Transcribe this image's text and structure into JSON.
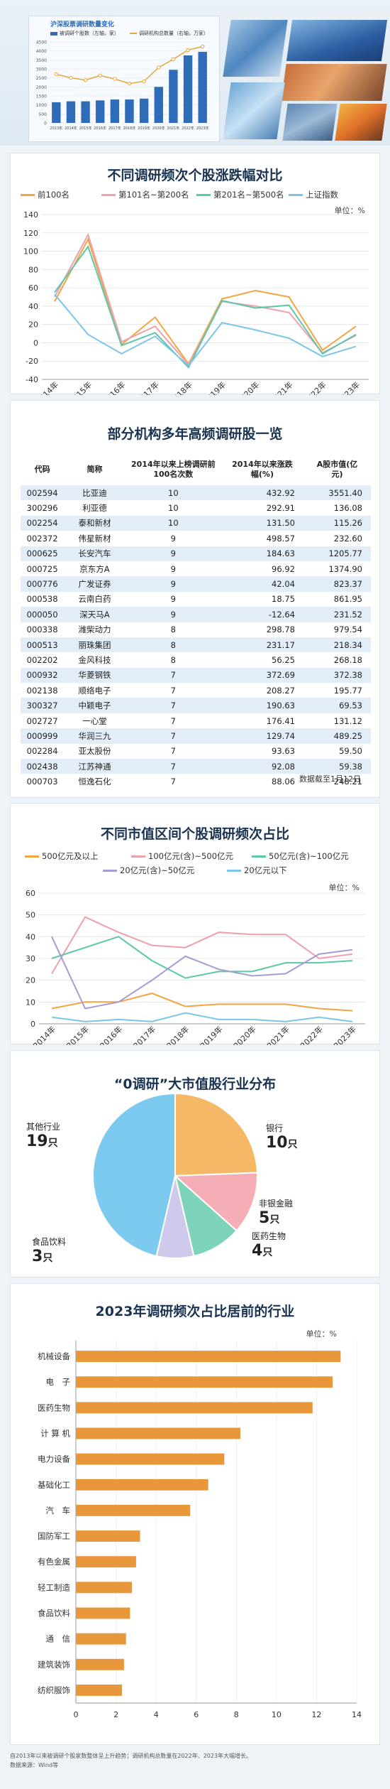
{
  "header": {
    "chart_title": "沪深股票调研数量变化",
    "legend_bar": "被调研个股数（左轴，家）",
    "legend_line": "调研机构总数量（右轴，万家）",
    "left_ticks": [
      "4500",
      "4000",
      "3500",
      "3000",
      "2500",
      "2000",
      "1500",
      "1000",
      "500",
      "0"
    ],
    "years": [
      "2013年",
      "2014年",
      "2015年",
      "2016年",
      "2017年",
      "2018年",
      "2019年",
      "2020年",
      "2021年",
      "2022年",
      "2023年"
    ],
    "photos": [
      "实验室显微照片",
      "光伏与输电塔照片",
      "工业车间照片",
      "医疗实验照片",
      "轨道交通照片",
      "炼钢炉照片"
    ]
  },
  "panel1": {
    "title": "不同调研频次个股涨跌幅对比",
    "unit": "单位：%"
  },
  "panel2": {
    "title": "部分机构多年高频调研股一览",
    "headers": [
      "代码",
      "简称",
      "2014年以来上榜调研前100名次数",
      "2014年以来涨跌幅(%)",
      "A股市值(亿元)"
    ],
    "rows": [
      [
        "002594",
        "比亚迪",
        "10",
        "432.92",
        "3551.40"
      ],
      [
        "300296",
        "利亚德",
        "10",
        "292.91",
        "136.08"
      ],
      [
        "002254",
        "泰和新材",
        "10",
        "131.50",
        "115.26"
      ],
      [
        "002372",
        "伟星新材",
        "9",
        "498.57",
        "232.60"
      ],
      [
        "000625",
        "长安汽车",
        "9",
        "184.63",
        "1205.77"
      ],
      [
        "000725",
        "京东方A",
        "9",
        "96.92",
        "1374.90"
      ],
      [
        "000776",
        "广发证券",
        "9",
        "42.04",
        "823.37"
      ],
      [
        "000538",
        "云南白药",
        "9",
        "18.75",
        "861.95"
      ],
      [
        "000050",
        "深天马A",
        "9",
        "-12.64",
        "231.52"
      ],
      [
        "000338",
        "潍柴动力",
        "8",
        "298.78",
        "979.54"
      ],
      [
        "000513",
        "丽珠集团",
        "8",
        "231.17",
        "218.34"
      ],
      [
        "002202",
        "金风科技",
        "8",
        "56.25",
        "268.18"
      ],
      [
        "000932",
        "华菱钢铁",
        "7",
        "372.69",
        "372.38"
      ],
      [
        "002138",
        "顺络电子",
        "7",
        "208.27",
        "195.77"
      ],
      [
        "300327",
        "中颖电子",
        "7",
        "190.63",
        "69.53"
      ],
      [
        "002727",
        "一心堂",
        "7",
        "176.41",
        "131.12"
      ],
      [
        "000999",
        "华润三九",
        "7",
        "129.74",
        "489.25"
      ],
      [
        "002284",
        "亚太股份",
        "7",
        "93.63",
        "59.50"
      ],
      [
        "002438",
        "江苏神通",
        "7",
        "92.08",
        "59.38"
      ],
      [
        "000703",
        "恒逸石化",
        "7",
        "88.06",
        "248.21"
      ]
    ],
    "note": "数据截至1月12日"
  },
  "panel3": {
    "title": "不同市值区间个股调研频次占比",
    "unit": "单位：%"
  },
  "panel4": {
    "title": "“0调研”大市值股行业分布"
  },
  "panel5": {
    "title": "2023年调研频次占比居前的行业",
    "unit": "单位：%"
  },
  "footer": {
    "line1": "自2013年以来被调研个股家数整体呈上升趋势；调研机构总数量在2022年、2023年大幅增长。",
    "line2": "数据来源：Wind等"
  },
  "chart_data": [
    {
      "type": "bar",
      "categories": [
        "2013年",
        "2014年",
        "2015年",
        "2016年",
        "2017年",
        "2018年",
        "2019年",
        "2020年",
        "2021年",
        "2022年",
        "2023年"
      ],
      "series": [
        {
          "name": "被调研个股数（左轴，家）",
          "values": [
            1150,
            1200,
            1200,
            1250,
            1300,
            1300,
            1350,
            2000,
            2950,
            3750,
            3950
          ]
        },
        {
          "name": "调研机构总数量（右轴，万家）",
          "values": [
            4.2,
            3.9,
            3.7,
            4.1,
            3.8,
            3.4,
            3.6,
            4.8,
            5.5,
            6.3,
            6.6
          ]
        }
      ],
      "ylim": [
        0,
        4500
      ],
      "colors": {
        "bar": "#2e6bb8",
        "line": "#e9a636"
      }
    },
    {
      "type": "line",
      "categories": [
        "2014年",
        "2015年",
        "2016年",
        "2017年",
        "2018年",
        "2019年",
        "2020年",
        "2021年",
        "2022年",
        "2023年"
      ],
      "series": [
        {
          "name": "前100名",
          "color": "#f2a541",
          "values": [
            45,
            113,
            -2,
            28,
            -23,
            48,
            57,
            50,
            -8,
            18
          ]
        },
        {
          "name": "第101名~第200名",
          "color": "#f0a0ac",
          "values": [
            50,
            118,
            1,
            18,
            -24,
            45,
            40,
            33,
            -11,
            8
          ]
        },
        {
          "name": "第201名~第500名",
          "color": "#5cc7a9",
          "values": [
            55,
            105,
            -3,
            11,
            -27,
            46,
            38,
            41,
            -12,
            9
          ]
        },
        {
          "name": "上证指数",
          "color": "#7cc5ea",
          "values": [
            53,
            9,
            -12,
            7,
            -25,
            22,
            14,
            5,
            -15,
            -4
          ]
        }
      ],
      "ylim": [
        -40,
        140
      ],
      "yticks": [
        140,
        120,
        100,
        80,
        60,
        40,
        20,
        0,
        -20,
        -40
      ],
      "grid": true,
      "legend": "top"
    },
    {
      "type": "line",
      "categories": [
        "2014年",
        "2015年",
        "2016年",
        "2017年",
        "2018年",
        "2019年",
        "2020年",
        "2021年",
        "2022年",
        "2023年"
      ],
      "series": [
        {
          "name": "500亿元及以上",
          "color": "#f2a541",
          "values": [
            7,
            10,
            10,
            14,
            8,
            9,
            9,
            9,
            7,
            6
          ]
        },
        {
          "name": "100亿元(含)~500亿元",
          "color": "#f0a0ac",
          "values": [
            23,
            49,
            42,
            36,
            35,
            42,
            41,
            41,
            30,
            32
          ]
        },
        {
          "name": "50亿元(含)~100亿元",
          "color": "#5cc7a9",
          "values": [
            30,
            35,
            40,
            29,
            21,
            24,
            24,
            28,
            28,
            29
          ]
        },
        {
          "name": "20亿元(含)~50亿元",
          "color": "#a79bd6",
          "values": [
            40,
            7,
            10,
            20,
            31,
            25,
            22,
            23,
            32,
            34
          ]
        },
        {
          "name": "20亿元以下",
          "color": "#7cc5ea",
          "values": [
            3,
            1,
            2,
            1,
            5,
            2,
            2,
            1,
            3,
            1
          ]
        }
      ],
      "ylim": [
        0,
        60
      ],
      "yticks": [
        60,
        50,
        40,
        30,
        20,
        10,
        0
      ],
      "grid": true,
      "legend": "top"
    },
    {
      "type": "pie",
      "categories": [
        "银行",
        "非银金融",
        "医药生物",
        "食品饮料",
        "其他行业"
      ],
      "values": [
        10,
        5,
        4,
        3,
        19
      ],
      "labels": [
        "银行\n10只",
        "非银金融\n5只",
        "医药生物\n4只",
        "食品饮料\n3只",
        "其他行业\n19只"
      ],
      "colors": [
        "#f5b866",
        "#f5aeb6",
        "#7ed3bb",
        "#cfc9ec",
        "#7ccaf0"
      ]
    },
    {
      "type": "bar",
      "orientation": "horizontal",
      "categories": [
        "机械设备",
        "电　子",
        "医药生物",
        "计 算 机",
        "电力设备",
        "基础化工",
        "汽　车",
        "国防军工",
        "有色金属",
        "轻工制造",
        "食品饮料",
        "通　信",
        "建筑装饰",
        "纺织服饰"
      ],
      "values": [
        13.2,
        12.8,
        11.8,
        8.2,
        7.4,
        6.6,
        5.7,
        3.2,
        3.0,
        2.8,
        2.7,
        2.5,
        2.4,
        2.3
      ],
      "xlim": [
        0,
        14
      ],
      "xticks": [
        0,
        2,
        4,
        6,
        8,
        10,
        12,
        14
      ],
      "color": "#e9973b"
    }
  ]
}
